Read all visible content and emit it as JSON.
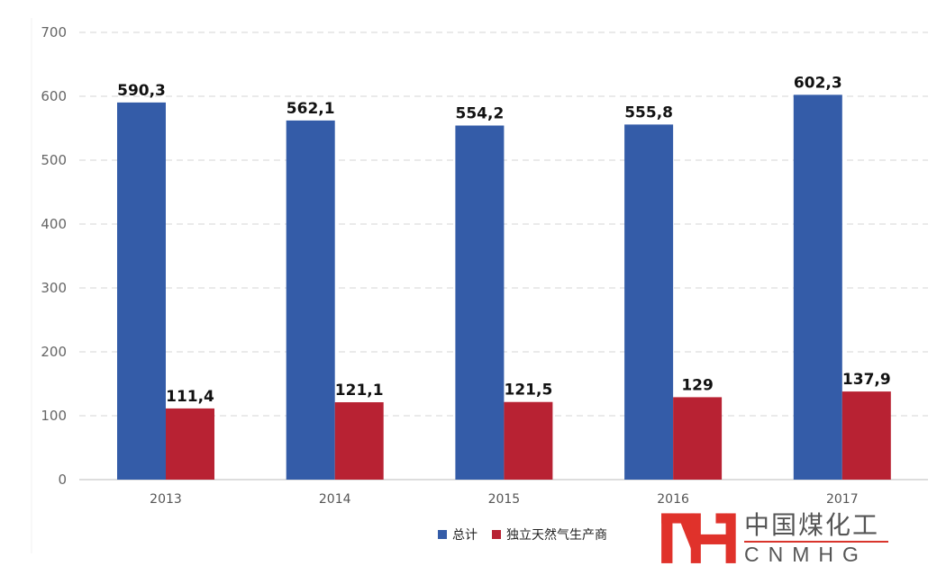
{
  "chart_data": {
    "type": "bar",
    "categories": [
      "2013",
      "2014",
      "2015",
      "2016",
      "2017"
    ],
    "series": [
      {
        "name": "总计",
        "color": "#345ca8",
        "values": [
          590.3,
          562.1,
          554.2,
          555.8,
          602.3
        ],
        "labels": [
          "590,3",
          "562,1",
          "554,2",
          "555,8",
          "602,3"
        ]
      },
      {
        "name": "独立天然气生产商",
        "color": "#b82233",
        "values": [
          111.4,
          121.1,
          121.5,
          129,
          137.9
        ],
        "labels": [
          "111,4",
          "121,1",
          "121,5",
          "129",
          "137,9"
        ]
      }
    ],
    "ylim": [
      0,
      700
    ],
    "yticks": [
      "0",
      "100",
      "200",
      "300",
      "400",
      "500",
      "600",
      "700"
    ],
    "grid": true,
    "legend": "bottom"
  },
  "logo": {
    "cn": "中国煤化工",
    "en": "CNMHG"
  }
}
